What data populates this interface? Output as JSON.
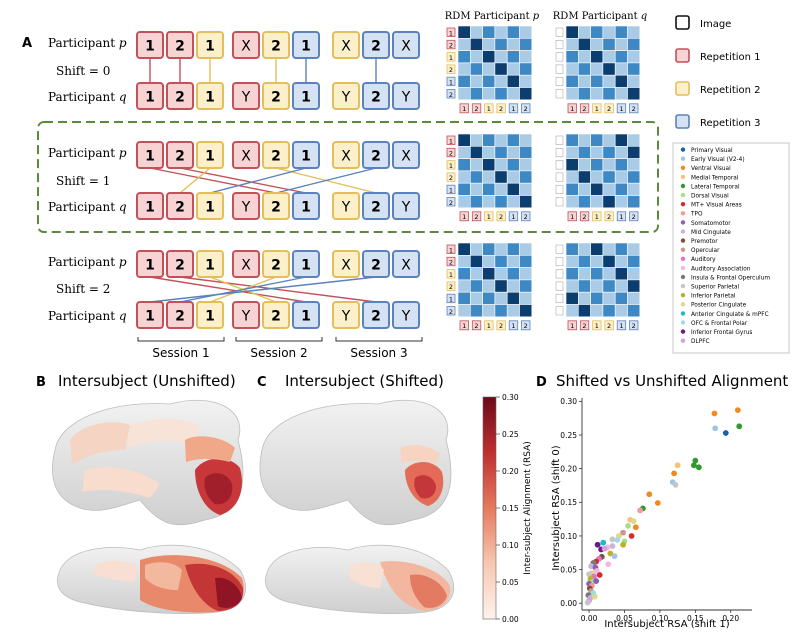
{
  "panels": {
    "A": "A",
    "B": "B",
    "C": "C",
    "D": "D",
    "B_title": "Intersubject (Unshifted)",
    "C_title": "Intersubject (Shifted)",
    "D_title": "Shifted vs Unshifted Alignment"
  },
  "labels": {
    "participant": "Participant",
    "p": "p",
    "q": "q",
    "shift_word": "Shift",
    "rdm_p": "RDM Participant",
    "rdm_q": "RDM Participant"
  },
  "shifts": [
    {
      "label": "Shift = 0"
    },
    {
      "label": "Shift = 1"
    },
    {
      "label": "Shift = 2"
    }
  ],
  "rows": {
    "p": [
      "1",
      "2",
      "1",
      "X",
      "2",
      "1",
      "X",
      "2",
      "X"
    ],
    "q": [
      "1",
      "2",
      "1",
      "Y",
      "2",
      "1",
      "Y",
      "2",
      "Y"
    ]
  },
  "sessions": [
    "Session 1",
    "Session 2",
    "Session 3"
  ],
  "rdm_axis": [
    "1",
    "2",
    "1",
    "2",
    "1",
    "2"
  ],
  "legend": {
    "image": "Image",
    "rep1": "Repetition 1",
    "rep2": "Repetition 2",
    "rep3": "Repetition 3"
  },
  "colors": {
    "rep1_fill": "#f7d3d3",
    "rep1_edge": "#c4505a",
    "rep2_fill": "#fbf0c9",
    "rep2_edge": "#e3be5b",
    "rep3_fill": "#d5e2f4",
    "rep3_edge": "#5b82bd",
    "dash_box": "#5a8a3a",
    "rdm_dark": "#0b3d6e",
    "rdm_mid": "#3e88c4",
    "rdm_light": "#a9cbe6"
  },
  "roi_legend": [
    {
      "name": "Primary Visual",
      "color": "#1f5fa8"
    },
    {
      "name": "Early Visual (V2-4)",
      "color": "#9ec5e6"
    },
    {
      "name": "Ventral Visual",
      "color": "#f08a1e"
    },
    {
      "name": "Medial Temporal",
      "color": "#f6c27a"
    },
    {
      "name": "Lateral Temporal",
      "color": "#2f9a2f"
    },
    {
      "name": "Dorsal Visual",
      "color": "#a8de8a"
    },
    {
      "name": "MT+ Visual Areas",
      "color": "#d42d2d"
    },
    {
      "name": "TPO",
      "color": "#f49a9a"
    },
    {
      "name": "Somatomotor",
      "color": "#8a5fb8"
    },
    {
      "name": "Mid Cingulate",
      "color": "#c8b4dc"
    },
    {
      "name": "Premotor",
      "color": "#7f4f40"
    },
    {
      "name": "Opercular",
      "color": "#c79a8a"
    },
    {
      "name": "Auditory",
      "color": "#e373c8"
    },
    {
      "name": "Auditory Association",
      "color": "#f5b8dc"
    },
    {
      "name": "Insula & Frontal Operculum",
      "color": "#7a7a7a"
    },
    {
      "name": "Superior Parietal",
      "color": "#c6c6c6"
    },
    {
      "name": "Inferior Parietal",
      "color": "#b7b325"
    },
    {
      "name": "Posterior Cingulate",
      "color": "#dcd98f"
    },
    {
      "name": "Anterior Cingulate & mPFC",
      "color": "#1fb8c8"
    },
    {
      "name": "OFC & Frontal Polar",
      "color": "#9edbe3"
    },
    {
      "name": "Inferior Frontal Gyrus",
      "color": "#6a1b8a"
    },
    {
      "name": "DLPFC",
      "color": "#d89fe0"
    }
  ],
  "colorbar": {
    "label": "Inter-subject Alignment (RSA)",
    "ticks": [
      "0.00",
      "0.05",
      "0.10",
      "0.15",
      "0.20",
      "0.25",
      "0.30"
    ]
  },
  "chart_data": {
    "type": "scatter",
    "title": "Shifted vs Unshifted Alignment",
    "xlabel": "Intersubject RSA (shift 1)",
    "ylabel": "Intersubject RSA (shift 0)",
    "xlim": [
      -0.01,
      0.23
    ],
    "ylim": [
      -0.01,
      0.305
    ],
    "xticks": [
      "0.00",
      "0.05",
      "0.10",
      "0.15",
      "0.20"
    ],
    "yticks": [
      "0.00",
      "0.05",
      "0.10",
      "0.15",
      "0.20",
      "0.25",
      "0.30"
    ],
    "points": [
      {
        "x": 0.21,
        "y": 0.287,
        "c": "#f08a1e"
      },
      {
        "x": 0.177,
        "y": 0.282,
        "c": "#f08a1e"
      },
      {
        "x": 0.212,
        "y": 0.263,
        "c": "#2f9a2f"
      },
      {
        "x": 0.178,
        "y": 0.26,
        "c": "#9ec5e6"
      },
      {
        "x": 0.193,
        "y": 0.253,
        "c": "#1f5fa8"
      },
      {
        "x": 0.15,
        "y": 0.212,
        "c": "#2f9a2f"
      },
      {
        "x": 0.155,
        "y": 0.202,
        "c": "#2f9a2f"
      },
      {
        "x": 0.148,
        "y": 0.205,
        "c": "#2f9a2f"
      },
      {
        "x": 0.125,
        "y": 0.205,
        "c": "#f6c27a"
      },
      {
        "x": 0.12,
        "y": 0.193,
        "c": "#f08a1e"
      },
      {
        "x": 0.118,
        "y": 0.18,
        "c": "#9ec5e6"
      },
      {
        "x": 0.122,
        "y": 0.176,
        "c": "#c6c6c6"
      },
      {
        "x": 0.085,
        "y": 0.162,
        "c": "#f08a1e"
      },
      {
        "x": 0.097,
        "y": 0.149,
        "c": "#f08a1e"
      },
      {
        "x": 0.076,
        "y": 0.141,
        "c": "#2f9a2f"
      },
      {
        "x": 0.072,
        "y": 0.138,
        "c": "#f49a9a"
      },
      {
        "x": 0.058,
        "y": 0.124,
        "c": "#f6c27a"
      },
      {
        "x": 0.063,
        "y": 0.122,
        "c": "#dcd98f"
      },
      {
        "x": 0.055,
        "y": 0.115,
        "c": "#a8de8a"
      },
      {
        "x": 0.066,
        "y": 0.113,
        "c": "#f08a1e"
      },
      {
        "x": 0.048,
        "y": 0.105,
        "c": "#c79a8a"
      },
      {
        "x": 0.06,
        "y": 0.1,
        "c": "#d42d2d"
      },
      {
        "x": 0.042,
        "y": 0.1,
        "c": "#dcd98f"
      },
      {
        "x": 0.04,
        "y": 0.094,
        "c": "#9edbe3"
      },
      {
        "x": 0.033,
        "y": 0.095,
        "c": "#c6c6c6"
      },
      {
        "x": 0.05,
        "y": 0.092,
        "c": "#a8de8a"
      },
      {
        "x": 0.048,
        "y": 0.087,
        "c": "#b7b325"
      },
      {
        "x": 0.033,
        "y": 0.085,
        "c": "#c8b4dc"
      },
      {
        "x": 0.026,
        "y": 0.083,
        "c": "#f5b8dc"
      },
      {
        "x": 0.012,
        "y": 0.087,
        "c": "#6a1b8a"
      },
      {
        "x": 0.017,
        "y": 0.08,
        "c": "#6a1b8a"
      },
      {
        "x": 0.022,
        "y": 0.081,
        "c": "#d89fe0"
      },
      {
        "x": 0.02,
        "y": 0.09,
        "c": "#1fb8c8"
      },
      {
        "x": 0.03,
        "y": 0.074,
        "c": "#b7b325"
      },
      {
        "x": 0.036,
        "y": 0.07,
        "c": "#9ec5e6"
      },
      {
        "x": 0.018,
        "y": 0.069,
        "c": "#7f4f40"
      },
      {
        "x": 0.014,
        "y": 0.066,
        "c": "#e373c8"
      },
      {
        "x": 0.01,
        "y": 0.062,
        "c": "#d42d2d"
      },
      {
        "x": 0.006,
        "y": 0.06,
        "c": "#7a7a7a"
      },
      {
        "x": 0.003,
        "y": 0.055,
        "c": "#c8b4dc"
      },
      {
        "x": 0.009,
        "y": 0.053,
        "c": "#8a5fb8"
      },
      {
        "x": 0.011,
        "y": 0.048,
        "c": "#f5b8dc"
      },
      {
        "x": 0.004,
        "y": 0.045,
        "c": "#dcd98f"
      },
      {
        "x": 0.0,
        "y": 0.043,
        "c": "#c6c6c6"
      },
      {
        "x": 0.007,
        "y": 0.04,
        "c": "#e373c8"
      },
      {
        "x": 0.002,
        "y": 0.036,
        "c": "#b7b325"
      },
      {
        "x": 0.005,
        "y": 0.032,
        "c": "#a8de8a"
      },
      {
        "x": 0.0,
        "y": 0.029,
        "c": "#8a5fb8"
      },
      {
        "x": 0.004,
        "y": 0.026,
        "c": "#f49a9a"
      },
      {
        "x": 0.001,
        "y": 0.022,
        "c": "#7f4f40"
      },
      {
        "x": 0.003,
        "y": 0.018,
        "c": "#c79a8a"
      },
      {
        "x": 0.006,
        "y": 0.015,
        "c": "#9edbe3"
      },
      {
        "x": -0.001,
        "y": 0.012,
        "c": "#7a7a7a"
      },
      {
        "x": 0.002,
        "y": 0.008,
        "c": "#c8b4dc"
      },
      {
        "x": 0.0,
        "y": 0.004,
        "c": "#d89fe0"
      },
      {
        "x": -0.002,
        "y": 0.001,
        "c": "#c6c6c6"
      },
      {
        "x": 0.008,
        "y": 0.01,
        "c": "#dcd98f"
      },
      {
        "x": 0.01,
        "y": 0.033,
        "c": "#8a5fb8"
      },
      {
        "x": 0.015,
        "y": 0.042,
        "c": "#d42d2d"
      },
      {
        "x": 0.027,
        "y": 0.058,
        "c": "#f5b8dc"
      }
    ]
  }
}
